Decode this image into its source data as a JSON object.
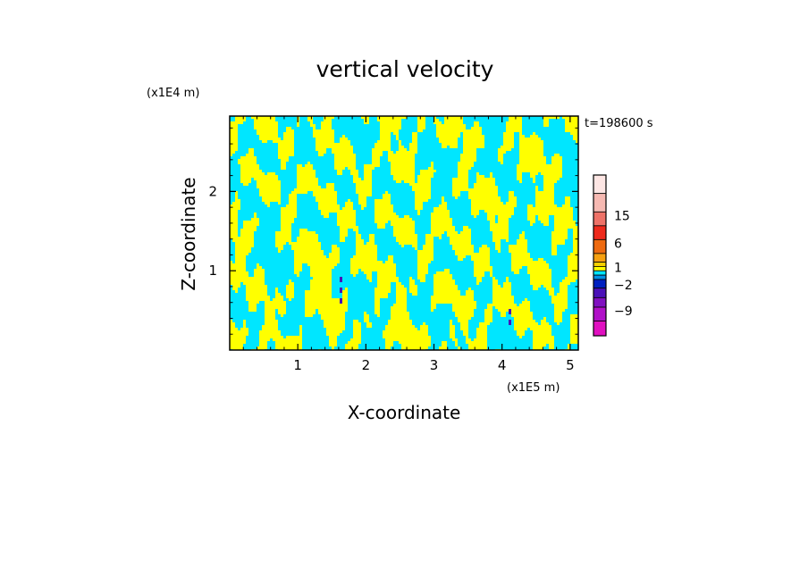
{
  "chart_data": {
    "type": "heatmap",
    "title": "vertical velocity",
    "xlabel": "X-coordinate",
    "ylabel": "Z-coordinate",
    "x_scale_label": "(x1E5 m)",
    "y_scale_label": "(x1E4 m)",
    "time_label": "t=198600 s",
    "xlim": [
      0,
      5.12
    ],
    "ylim": [
      0,
      2.95
    ],
    "x_ticks": [
      1,
      2,
      3,
      4,
      5
    ],
    "y_ticks": [
      1,
      2
    ],
    "colorbar": {
      "levels": [
        {
          "upper": null,
          "color": "#fde6e4"
        },
        {
          "upper": 18,
          "color": "#f6b9b2"
        },
        {
          "upper": 15,
          "color": "#ee7268"
        },
        {
          "upper": 9,
          "color": "#ee2a1c"
        },
        {
          "upper": 6,
          "color": "#ee6a10"
        },
        {
          "upper": 3,
          "color": "#f6a010"
        },
        {
          "upper": 2,
          "color": "#f6d000"
        },
        {
          "upper": 1,
          "color": "#ffff00"
        },
        {
          "upper": 0,
          "color": "#00e6ff"
        },
        {
          "upper": -1,
          "color": "#0090e6"
        },
        {
          "upper": -2,
          "color": "#0020c0"
        },
        {
          "upper": -4,
          "color": "#4a10b8"
        },
        {
          "upper": -6,
          "color": "#8010c0"
        },
        {
          "upper": -9,
          "color": "#b010c8"
        },
        {
          "upper": -12,
          "color": "#e010c0"
        }
      ],
      "tick_labels": [
        "15",
        "6",
        "1",
        "-2",
        "-9"
      ]
    },
    "field_note": "Dominant values alternate between the yellow (0 to 1) and cyan (-1 to 0) levels, with narrow negative streaks near x=1.6 and x=4.1."
  }
}
